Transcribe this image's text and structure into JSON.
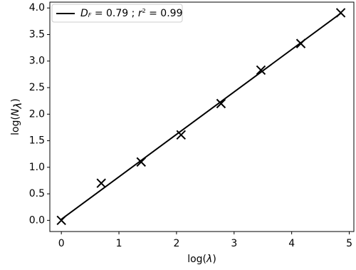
{
  "chart_data": {
    "type": "scatter",
    "xlabel": [
      "log(",
      "λ",
      ")"
    ],
    "ylabel": [
      "log(",
      "N",
      "λ",
      ")"
    ],
    "xlim": [
      -0.2,
      5.08
    ],
    "ylim": [
      -0.21,
      4.11
    ],
    "xticks": [
      0,
      1,
      2,
      3,
      4,
      5
    ],
    "yticks": [
      {
        "value": 0,
        "label": "0.0"
      },
      {
        "value": 0.5,
        "label": "0.5"
      },
      {
        "value": 1,
        "label": "1.0"
      },
      {
        "value": 1.5,
        "label": "1.5"
      },
      {
        "value": 2,
        "label": "2.0"
      },
      {
        "value": 2.5,
        "label": "2.5"
      },
      {
        "value": 3,
        "label": "3.0"
      },
      {
        "value": 3.5,
        "label": "3.5"
      },
      {
        "value": 4,
        "label": "4.0"
      }
    ],
    "legend": "upper left",
    "series": [
      {
        "kind": "markers",
        "marker": "x",
        "color": "#000000",
        "x": [
          0,
          0.693,
          1.386,
          2.079,
          2.773,
          3.466,
          4.159,
          4.852
        ],
        "values": [
          0,
          0.7,
          1.1,
          1.61,
          2.2,
          2.83,
          3.33,
          3.91
        ]
      },
      {
        "kind": "line",
        "color": "#000000",
        "name": [
          "D",
          "F",
          " = 0.79 ; ",
          "r",
          "2",
          " = 0.99"
        ],
        "x": [
          0,
          4.852
        ],
        "values": [
          0.02,
          3.9
        ]
      }
    ]
  }
}
